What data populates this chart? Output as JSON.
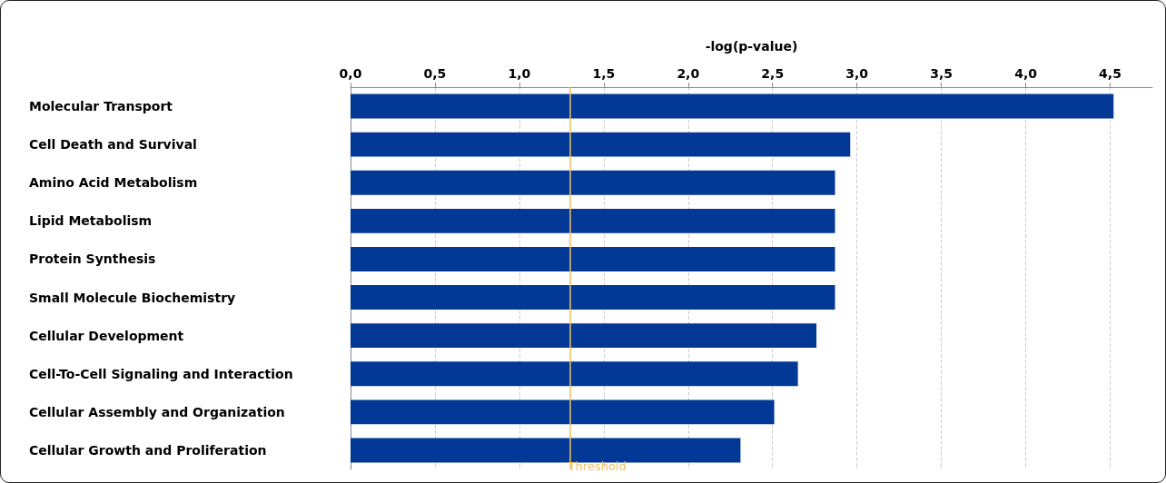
{
  "chart_data": {
    "type": "bar",
    "orientation": "horizontal",
    "xlabel": "-log(p-value)",
    "categories": [
      "Molecular Transport",
      "Cell Death and Survival",
      "Amino Acid Metabolism",
      "Lipid Metabolism",
      "Protein Synthesis",
      "Small Molecule Biochemistry",
      "Cellular Development",
      "Cell-To-Cell Signaling and Interaction",
      "Cellular Assembly and Organization",
      "Cellular Growth and Proliferation"
    ],
    "values": [
      4.52,
      2.96,
      2.87,
      2.87,
      2.87,
      2.87,
      2.76,
      2.65,
      2.51,
      2.31
    ],
    "color": "#023896",
    "xlim": [
      0,
      4.75
    ],
    "xticks": [
      {
        "value": 0,
        "label": "0,0"
      },
      {
        "value": 0.5,
        "label": "0,5"
      },
      {
        "value": 1,
        "label": "1,0"
      },
      {
        "value": 1.5,
        "label": "1,5"
      },
      {
        "value": 2,
        "label": "2,0"
      },
      {
        "value": 2.5,
        "label": "2,5"
      },
      {
        "value": 3,
        "label": "3,0"
      },
      {
        "value": 3.5,
        "label": "3,5"
      },
      {
        "value": 4,
        "label": "4,0"
      },
      {
        "value": 4.5,
        "label": "4,5"
      }
    ],
    "ref_lines": [
      {
        "axis": "x",
        "value": 1.3,
        "label": "Threshold",
        "color": "#f0c060"
      }
    ],
    "grid": "x"
  }
}
